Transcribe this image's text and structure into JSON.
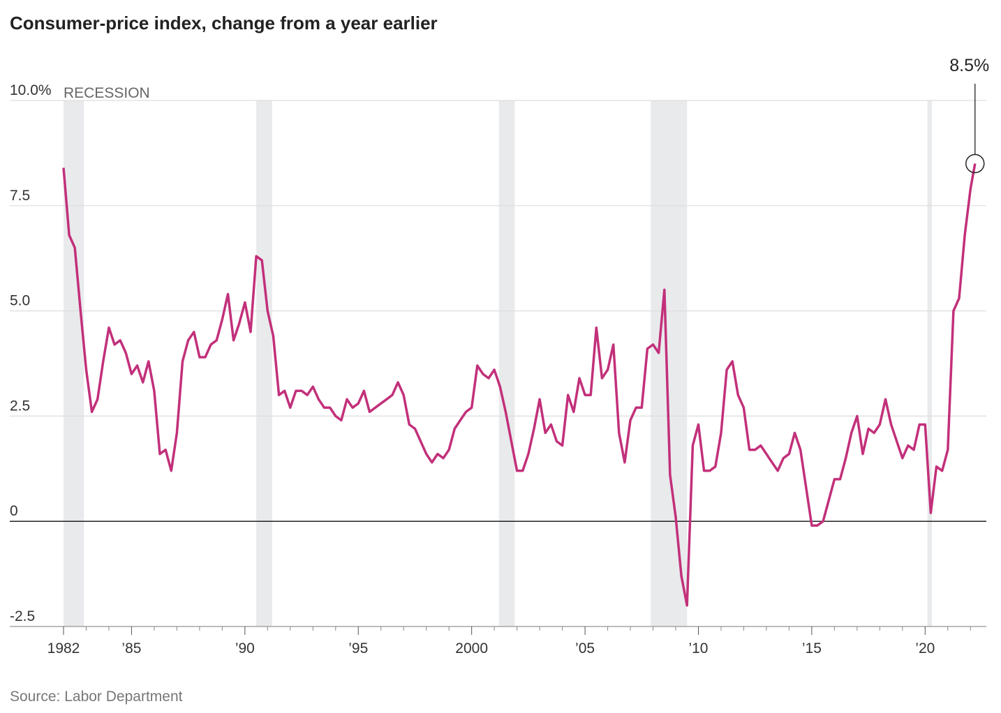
{
  "chart_data": {
    "type": "line",
    "title": "Consumer-price index, change from a year earlier",
    "source": "Source: Labor Department",
    "recession_label": "RECESSION",
    "recessions": [
      [
        1982.0,
        1982.9
      ],
      [
        1990.5,
        1991.2
      ],
      [
        2001.2,
        2001.9
      ],
      [
        2007.9,
        2009.5
      ],
      [
        2020.1,
        2020.3
      ]
    ],
    "color": "#c2307a",
    "x": [
      1982.0,
      1982.25,
      1982.5,
      1982.75,
      1983.0,
      1983.25,
      1983.5,
      1983.75,
      1984.0,
      1984.25,
      1984.5,
      1984.75,
      1985.0,
      1985.25,
      1985.5,
      1985.75,
      1986.0,
      1986.25,
      1986.5,
      1986.75,
      1987.0,
      1987.25,
      1987.5,
      1987.75,
      1988.0,
      1988.25,
      1988.5,
      1988.75,
      1989.0,
      1989.25,
      1989.5,
      1989.75,
      1990.0,
      1990.25,
      1990.5,
      1990.75,
      1991.0,
      1991.25,
      1991.5,
      1991.75,
      1992.0,
      1992.25,
      1992.5,
      1992.75,
      1993.0,
      1993.25,
      1993.5,
      1993.75,
      1994.0,
      1994.25,
      1994.5,
      1994.75,
      1995.0,
      1995.25,
      1995.5,
      1995.75,
      1996.0,
      1996.25,
      1996.5,
      1996.75,
      1997.0,
      1997.25,
      1997.5,
      1997.75,
      1998.0,
      1998.25,
      1998.5,
      1998.75,
      1999.0,
      1999.25,
      1999.5,
      1999.75,
      2000.0,
      2000.25,
      2000.5,
      2000.75,
      2001.0,
      2001.25,
      2001.5,
      2001.75,
      2002.0,
      2002.25,
      2002.5,
      2002.75,
      2003.0,
      2003.25,
      2003.5,
      2003.75,
      2004.0,
      2004.25,
      2004.5,
      2004.75,
      2005.0,
      2005.25,
      2005.5,
      2005.75,
      2006.0,
      2006.25,
      2006.5,
      2006.75,
      2007.0,
      2007.25,
      2007.5,
      2007.75,
      2008.0,
      2008.25,
      2008.5,
      2008.75,
      2009.0,
      2009.25,
      2009.5,
      2009.75,
      2010.0,
      2010.25,
      2010.5,
      2010.75,
      2011.0,
      2011.25,
      2011.5,
      2011.75,
      2012.0,
      2012.25,
      2012.5,
      2012.75,
      2013.0,
      2013.25,
      2013.5,
      2013.75,
      2014.0,
      2014.25,
      2014.5,
      2014.75,
      2015.0,
      2015.25,
      2015.5,
      2015.75,
      2016.0,
      2016.25,
      2016.5,
      2016.75,
      2017.0,
      2017.25,
      2017.5,
      2017.75,
      2018.0,
      2018.25,
      2018.5,
      2018.75,
      2019.0,
      2019.25,
      2019.5,
      2019.75,
      2020.0,
      2020.25,
      2020.5,
      2020.75,
      2021.0,
      2021.25,
      2021.5,
      2021.75,
      2022.0,
      2022.2
    ],
    "values": [
      8.4,
      6.8,
      6.5,
      5.0,
      3.6,
      2.6,
      2.9,
      3.8,
      4.6,
      4.2,
      4.3,
      4.0,
      3.5,
      3.7,
      3.3,
      3.8,
      3.1,
      1.6,
      1.7,
      1.2,
      2.1,
      3.8,
      4.3,
      4.5,
      3.9,
      3.9,
      4.2,
      4.3,
      4.8,
      5.4,
      4.3,
      4.7,
      5.2,
      4.5,
      6.3,
      6.2,
      5.0,
      4.4,
      3.0,
      3.1,
      2.7,
      3.1,
      3.1,
      3.0,
      3.2,
      2.9,
      2.7,
      2.7,
      2.5,
      2.4,
      2.9,
      2.7,
      2.8,
      3.1,
      2.6,
      2.7,
      2.8,
      2.9,
      3.0,
      3.3,
      3.0,
      2.3,
      2.2,
      1.9,
      1.6,
      1.4,
      1.6,
      1.5,
      1.7,
      2.2,
      2.4,
      2.6,
      2.7,
      3.7,
      3.5,
      3.4,
      3.6,
      3.2,
      2.6,
      1.9,
      1.2,
      1.2,
      1.6,
      2.2,
      2.9,
      2.1,
      2.3,
      1.9,
      1.8,
      3.0,
      2.6,
      3.4,
      3.0,
      3.0,
      4.6,
      3.4,
      3.6,
      4.2,
      2.1,
      1.4,
      2.4,
      2.7,
      2.7,
      4.1,
      4.2,
      4.0,
      5.5,
      1.1,
      0.1,
      -1.3,
      -2.0,
      1.8,
      2.3,
      1.2,
      1.2,
      1.3,
      2.1,
      3.6,
      3.8,
      3.0,
      2.7,
      1.7,
      1.7,
      1.8,
      1.6,
      1.4,
      1.2,
      1.5,
      1.6,
      2.1,
      1.7,
      0.8,
      -0.1,
      -0.1,
      0.0,
      0.5,
      1.0,
      1.0,
      1.5,
      2.1,
      2.5,
      1.6,
      2.2,
      2.1,
      2.3,
      2.9,
      2.3,
      1.9,
      1.5,
      1.8,
      1.7,
      2.3,
      2.3,
      0.2,
      1.3,
      1.2,
      1.7,
      5.0,
      5.3,
      6.8,
      7.9,
      8.5
    ],
    "annotation": {
      "x": 2022.2,
      "value": 8.5,
      "label": "8.5%"
    },
    "xlim": [
      1982,
      2022.7
    ],
    "xticks": [
      1982,
      {
        "value": 1985,
        "label": "’85"
      },
      {
        "value": 1990,
        "label": "’90"
      },
      {
        "value": 1995,
        "label": "’95"
      },
      2000,
      {
        "value": 2005,
        "label": "’05"
      },
      {
        "value": 2010,
        "label": "’10"
      },
      {
        "value": 2015,
        "label": "’15"
      },
      {
        "value": 2020,
        "label": "’20"
      }
    ],
    "xminorticks": [
      1983,
      1984,
      1986,
      1987,
      1988,
      1989,
      1991,
      1992,
      1993,
      1994,
      1996,
      1997,
      1998,
      1999,
      2001,
      2002,
      2003,
      2004,
      2006,
      2007,
      2008,
      2009,
      2011,
      2012,
      2013,
      2014,
      2016,
      2017,
      2018,
      2019,
      2021,
      2022
    ],
    "ylim": [
      -2.5,
      10
    ],
    "yticks": [
      -2.5,
      0,
      2.5,
      {
        "value": 5,
        "label": "5.0"
      },
      7.5,
      {
        "value": 10,
        "label": "10.0%"
      }
    ],
    "grid": true
  }
}
